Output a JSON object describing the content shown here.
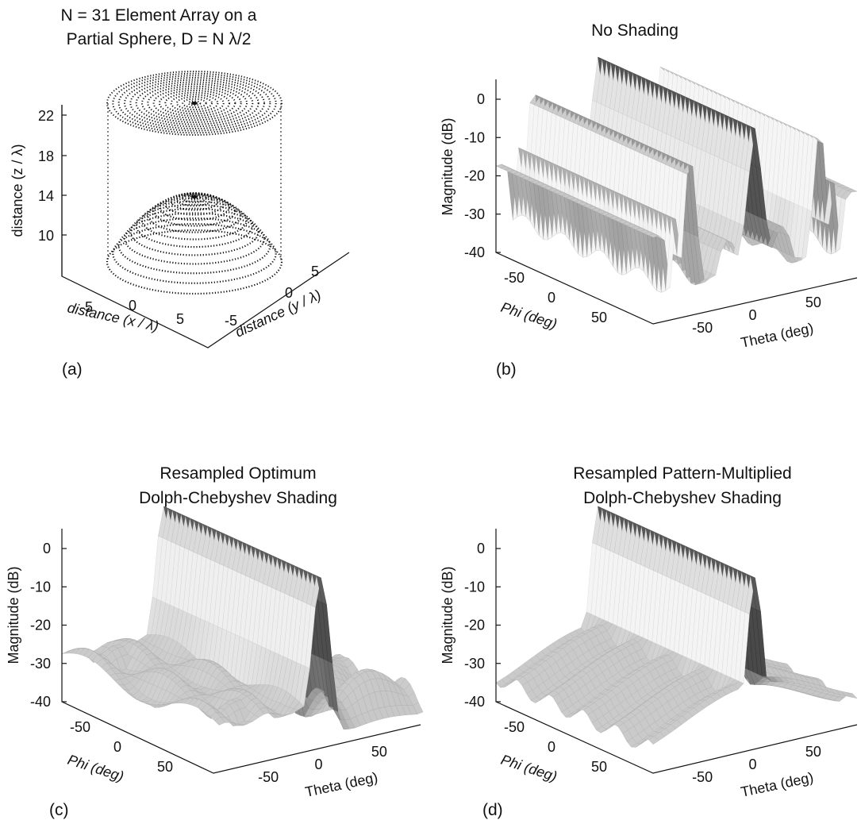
{
  "panels": {
    "a": {
      "label": "(a)",
      "title_line1": "N = 31 Element Array on a",
      "title_line2": "Partial Sphere, D = N λ/2",
      "zlabel": "distance  (z / λ)",
      "xlabel": "distance  (x / λ)",
      "ylabel": "distance  (y / λ)",
      "zticks": [
        "22",
        "18",
        "14",
        "10"
      ],
      "xticks": [
        "-5",
        "0",
        "5"
      ],
      "yticks": [
        "-5",
        "0",
        "5"
      ]
    },
    "b": {
      "label": "(b)",
      "title_line1": "No Shading",
      "title_line2": "",
      "zlabel": "Magnitude (dB)",
      "philabel": "Phi (deg)",
      "thetalabel": "Theta (deg)",
      "zticks": [
        "0",
        "-10",
        "-20",
        "-30",
        "-40"
      ],
      "phiticks": [
        "-50",
        "0",
        "50"
      ],
      "thetaticks": [
        "-50",
        "0",
        "50"
      ]
    },
    "c": {
      "label": "(c)",
      "title_line1": "Resampled Optimum",
      "title_line2": "Dolph-Chebyshev Shading",
      "zlabel": "Magnitude (dB)",
      "philabel": "Phi (deg)",
      "thetalabel": "Theta (deg)",
      "zticks": [
        "0",
        "-10",
        "-20",
        "-30",
        "-40"
      ],
      "phiticks": [
        "-50",
        "0",
        "50"
      ],
      "thetaticks": [
        "-50",
        "0",
        "50"
      ]
    },
    "d": {
      "label": "(d)",
      "title_line1": "Resampled Pattern-Multiplied",
      "title_line2": "Dolph-Chebyshev Shading",
      "zlabel": "Magnitude (dB)",
      "philabel": "Phi (deg)",
      "thetalabel": "Theta (deg)",
      "zticks": [
        "0",
        "-10",
        "-20",
        "-30",
        "-40"
      ],
      "phiticks": [
        "-50",
        "0",
        "50"
      ],
      "thetaticks": [
        "-50",
        "0",
        "50"
      ]
    }
  },
  "chart_data": [
    {
      "type": "scatter",
      "title": "N = 31 Element Array on a Partial Sphere, D = N λ/2",
      "xlabel": "distance  (x / λ)",
      "ylabel": "distance  (y / λ)",
      "zlabel": "distance  (z / λ)",
      "xlim": [
        -8,
        8
      ],
      "ylim": [
        -8,
        8
      ],
      "zlim": [
        8,
        24
      ],
      "element_count": 31,
      "layers": [
        {
          "z": 23,
          "rings": 15
        },
        {
          "z": 12,
          "rings": 15
        }
      ],
      "grid": false
    },
    {
      "type": "heatmap",
      "title": "No Shading",
      "xlabel": "Theta (deg)",
      "ylabel": "Phi (deg)",
      "zlabel": "Magnitude (dB)",
      "xlim": [
        -90,
        90
      ],
      "ylim": [
        -90,
        90
      ],
      "zlim": [
        -40,
        5
      ],
      "peak_db": 5,
      "mainlobe_theta_deg": 0,
      "sidelobe_level_db": -13,
      "floor_db": -32
    },
    {
      "type": "heatmap",
      "title": "Resampled Optimum Dolph-Chebyshev Shading",
      "xlabel": "Theta (deg)",
      "ylabel": "Phi (deg)",
      "zlabel": "Magnitude (dB)",
      "xlim": [
        -90,
        90
      ],
      "ylim": [
        -90,
        90
      ],
      "zlim": [
        -40,
        5
      ],
      "peak_db": 5,
      "mainlobe_theta_deg": 0,
      "sidelobe_level_db": -22,
      "floor_db": -35
    },
    {
      "type": "heatmap",
      "title": "Resampled Pattern-Multiplied Dolph-Chebyshev Shading",
      "xlabel": "Theta (deg)",
      "ylabel": "Phi (deg)",
      "zlabel": "Magnitude (dB)",
      "xlim": [
        -90,
        90
      ],
      "ylim": [
        -90,
        90
      ],
      "zlim": [
        -40,
        5
      ],
      "peak_db": 5,
      "mainlobe_theta_deg": 0,
      "sidelobe_level_db": -23,
      "floor_db": -30
    }
  ]
}
